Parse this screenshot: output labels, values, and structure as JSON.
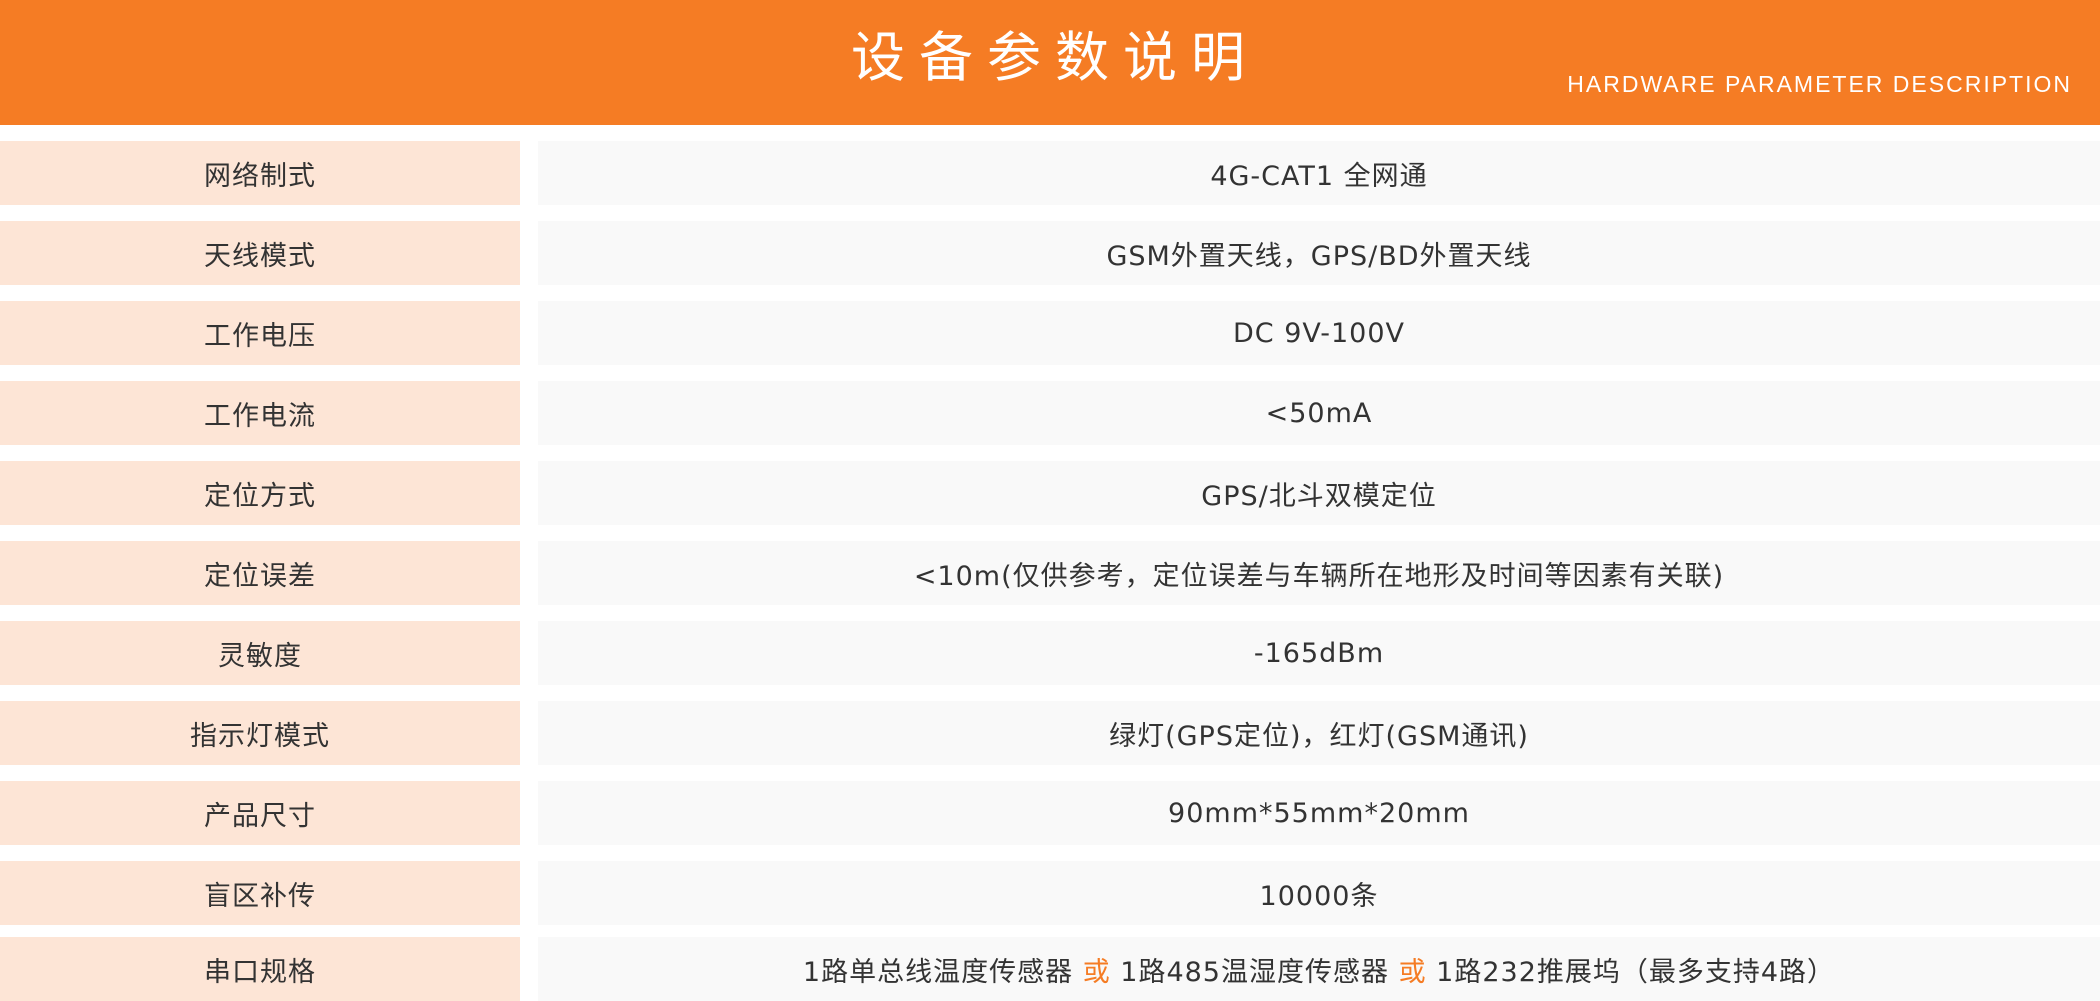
{
  "header": {
    "title": "设备参数说明",
    "subtitle": "HARDWARE PARAMETER DESCRIPTION"
  },
  "colors": {
    "accent": "#F57C24",
    "label_bg": "#FDE5D6",
    "value_bg": "#F9F9F9",
    "text": "#333333"
  },
  "params": [
    {
      "label": "网络制式",
      "value": "4G-CAT1 全网通"
    },
    {
      "label": "天线模式",
      "value": "GSM外置天线，GPS/BD外置天线"
    },
    {
      "label": "工作电压",
      "value": "DC 9V-100V"
    },
    {
      "label": "工作电流",
      "value": "<50mA"
    },
    {
      "label": "定位方式",
      "value": "GPS/北斗双模定位"
    },
    {
      "label": "定位误差",
      "value": "<10m(仅供参考，定位误差与车辆所在地形及时间等因素有关联)"
    },
    {
      "label": "灵敏度",
      "value": "-165dBm"
    },
    {
      "label": "指示灯模式",
      "value": "绿灯(GPS定位)，红灯(GSM通讯)"
    },
    {
      "label": "产品尺寸",
      "value": "90mm*55mm*20mm"
    },
    {
      "label": "盲区补传",
      "value": "10000条"
    },
    {
      "label": "串口规格",
      "value_parts": [
        "1路单总线温度传感器 ",
        "或",
        " 1路485温湿度传感器 ",
        "或",
        " 1路232推展坞（最多支持4路）"
      ]
    }
  ]
}
